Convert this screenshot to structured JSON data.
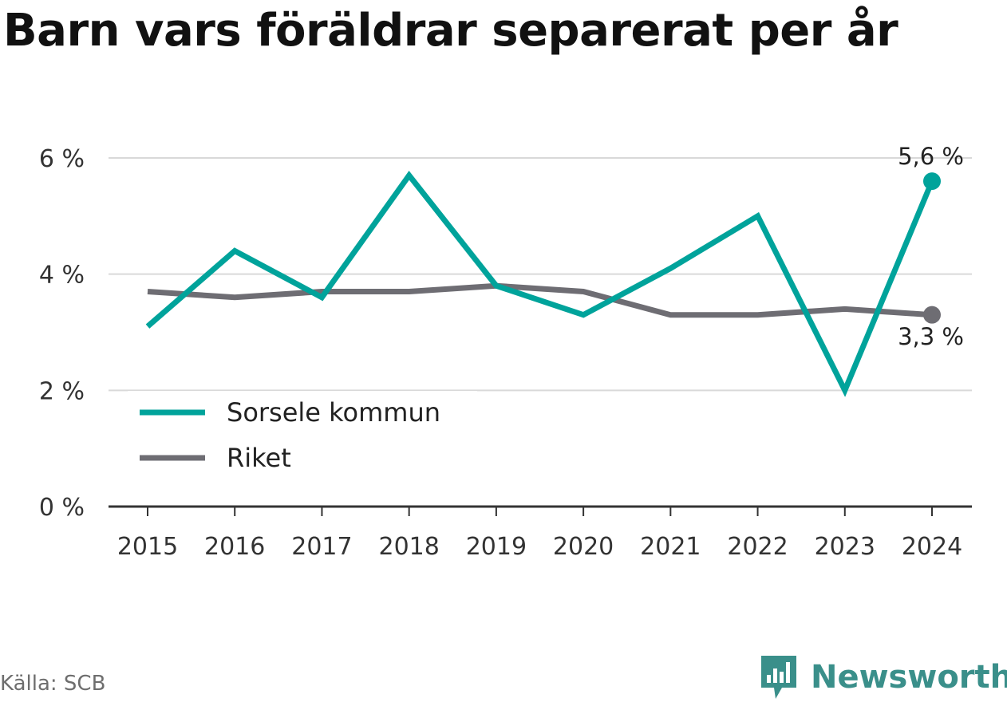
{
  "title": "Barn vars föräldrar separerat per år",
  "source": "Källa: SCB",
  "brand": {
    "name": "Newsworthy",
    "icon": "newsworthy-chart-logo-icon",
    "color": "#3a8f8a"
  },
  "colors": {
    "Sorsele kommun": "#00a39b",
    "Riket": "#6e6d73",
    "grid": "#d9d9d9",
    "axis": "#333333"
  },
  "chart_data": {
    "type": "line",
    "title": "Barn vars föräldrar separerat per år",
    "xlabel": "",
    "ylabel": "",
    "x": [
      "2015",
      "2016",
      "2017",
      "2018",
      "2019",
      "2020",
      "2021",
      "2022",
      "2023",
      "2024"
    ],
    "series": [
      {
        "name": "Sorsele kommun",
        "values": [
          3.1,
          4.4,
          3.6,
          5.7,
          3.8,
          3.3,
          4.1,
          5.0,
          2.0,
          5.6
        ]
      },
      {
        "name": "Riket",
        "values": [
          3.7,
          3.6,
          3.7,
          3.7,
          3.8,
          3.7,
          3.3,
          3.3,
          3.4,
          3.3
        ]
      }
    ],
    "ylim": [
      0,
      6
    ],
    "yticks": [
      0,
      2,
      4,
      6
    ],
    "ytick_labels": [
      "0 %",
      "2 %",
      "4 %",
      "6 %"
    ],
    "end_labels": [
      "5,6 %",
      "3,3 %"
    ],
    "grid": true,
    "legend_position": "bottom-left"
  }
}
